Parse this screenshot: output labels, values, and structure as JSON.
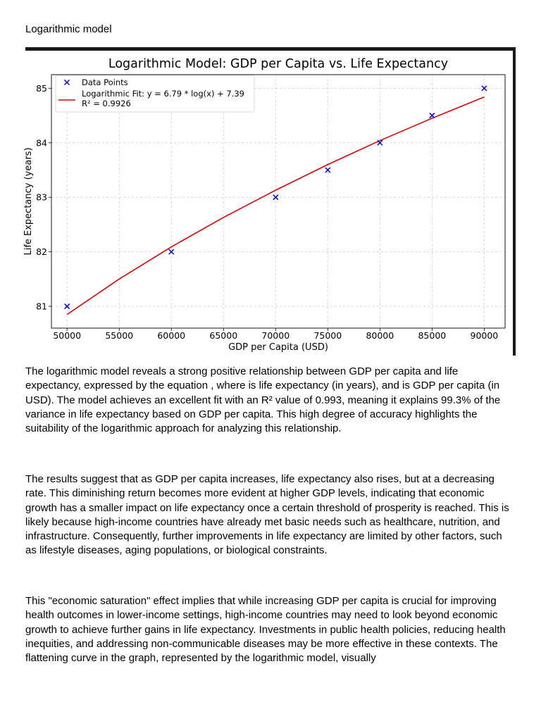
{
  "document": {
    "heading": "Logarithmic model",
    "paragraphs": [
      "The logarithmic model reveals a strong positive relationship between GDP per capita and life expectancy, expressed by the equation , where  is life expectancy (in years), and  is GDP per capita (in USD). The model achieves an excellent fit with an R² value of 0.993, meaning it explains 99.3% of the variance in life expectancy based on GDP per capita. This high degree of accuracy highlights the suitability of the logarithmic approach for analyzing this relationship.",
      "The results suggest that as GDP per capita increases, life expectancy also rises, but at a decreasing rate. This diminishing return becomes more evident at higher GDP levels, indicating that economic growth has a smaller impact on life expectancy once a certain threshold of prosperity is reached. This is likely because high-income countries have already met basic needs such as healthcare, nutrition, and infrastructure. Consequently, further improvements in life expectancy are limited by other factors, such as lifestyle diseases, aging populations, or biological constraints.",
      "This \"economic saturation\" effect implies that while increasing GDP per capita is crucial for improving health outcomes in lower-income settings, high-income countries may need to look beyond economic growth to achieve further gains in life expectancy. Investments in public health policies, reducing health inequities, and addressing non-communicable diseases may be more effective in these contexts. The flattening curve in the graph, represented by the logarithmic model, visually"
    ]
  },
  "chart_data": {
    "type": "scatter",
    "title": "Logarithmic Model: GDP per Capita vs. Life Expectancy",
    "xlabel": "GDP per Capita (USD)",
    "ylabel": "Life Expectancy (years)",
    "xlim": [
      48500,
      92000
    ],
    "ylim": [
      80.6,
      85.25
    ],
    "xticks": [
      50000,
      55000,
      60000,
      65000,
      70000,
      75000,
      80000,
      85000,
      90000
    ],
    "yticks": [
      81,
      82,
      83,
      84,
      85
    ],
    "grid": true,
    "legend_position": "top-left",
    "series": [
      {
        "name": "Data Points",
        "kind": "scatter",
        "marker": "x",
        "color": "#0000dd",
        "x": [
          50000,
          60000,
          70000,
          75000,
          80000,
          85000,
          90000
        ],
        "y": [
          81,
          82,
          83,
          83.5,
          84,
          84.5,
          85
        ]
      },
      {
        "name": "Logarithmic Fit: y = 6.79 * log(x) + 7.39",
        "name_line2": "R² = 0.9926",
        "kind": "line",
        "color": "#dd0000",
        "x": [
          50000,
          55000,
          60000,
          65000,
          70000,
          75000,
          80000,
          85000,
          90000
        ],
        "y": [
          80.85,
          81.5,
          82.09,
          82.63,
          83.13,
          83.6,
          84.04,
          84.45,
          84.84
        ]
      }
    ]
  }
}
